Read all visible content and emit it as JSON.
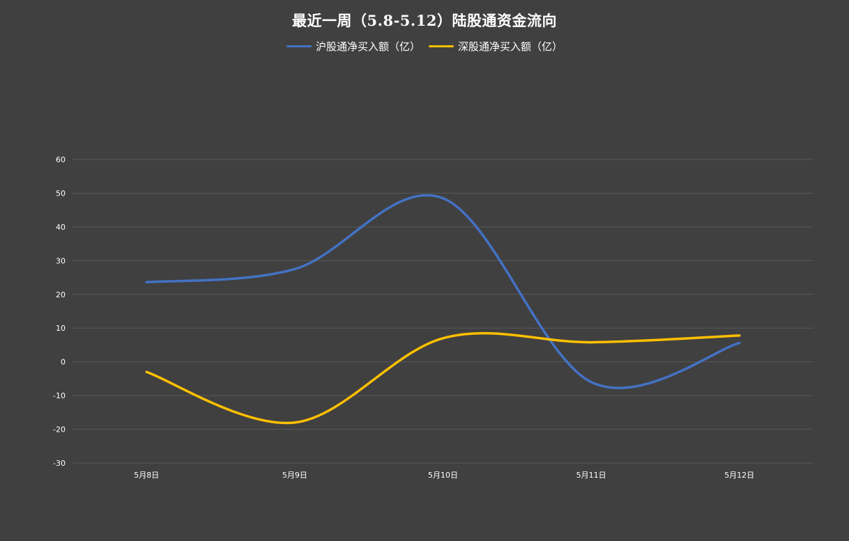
{
  "chart_data": {
    "type": "line",
    "title": "最近一周（5.8-5.12）陆股通资金流向",
    "categories": [
      "5月8日",
      "5月9日",
      "5月10日",
      "5月11日",
      "5月12日"
    ],
    "series": [
      {
        "name": "沪股通净买入额（亿）",
        "color": "#4472C4",
        "values": [
          23.6,
          27.5,
          48.5,
          -6.0,
          5.6
        ]
      },
      {
        "name": "深股通净买入额（亿）",
        "color": "#FFC000",
        "values": [
          -3.0,
          -18.0,
          7.0,
          5.8,
          7.8
        ]
      }
    ],
    "ylim": [
      -30,
      60
    ],
    "yticks": [
      "60",
      "50",
      "40",
      "30",
      "20",
      "10",
      "0",
      "-10",
      "-20",
      "-30"
    ],
    "grid": true,
    "smooth": true,
    "legend_position": "top",
    "colors": {
      "background": "#404040",
      "gridline": "#595959",
      "text": "#FFFFFF"
    }
  }
}
